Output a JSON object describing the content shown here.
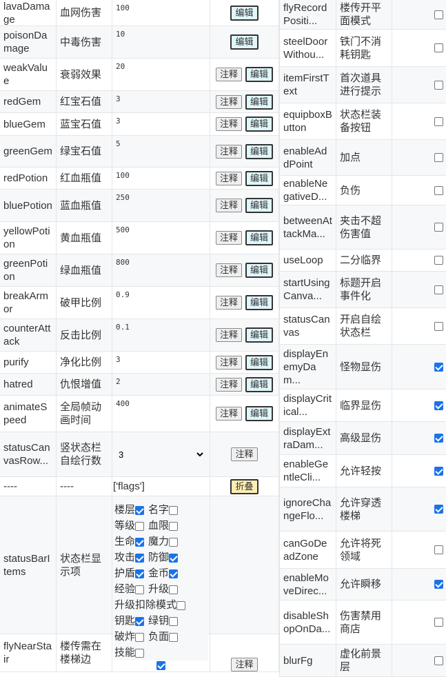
{
  "left_rows": [
    {
      "name": "lavaDamage",
      "label": "血网伤害",
      "value": "100",
      "comment": false,
      "edit": true
    },
    {
      "name": "poisonDamage",
      "label": "中毒伤害",
      "value": "10",
      "comment": false,
      "edit": true
    },
    {
      "name": "weakValue",
      "label": "衰弱效果",
      "value": "20",
      "comment": true,
      "edit": true
    },
    {
      "name": "redGem",
      "label": "红宝石值",
      "value": "3",
      "comment": true,
      "edit": true
    },
    {
      "name": "blueGem",
      "label": "蓝宝石值",
      "value": "3",
      "comment": true,
      "edit": true
    },
    {
      "name": "greenGem",
      "label": "绿宝石值",
      "value": "5",
      "comment": true,
      "edit": true
    },
    {
      "name": "redPotion",
      "label": "红血瓶值",
      "value": "100",
      "comment": true,
      "edit": true
    },
    {
      "name": "bluePotion",
      "label": "蓝血瓶值",
      "value": "250",
      "comment": true,
      "edit": true
    },
    {
      "name": "yellowPotion",
      "label": "黄血瓶值",
      "value": "500",
      "comment": true,
      "edit": true
    },
    {
      "name": "greenPotion",
      "label": "绿血瓶值",
      "value": "800",
      "comment": true,
      "edit": true
    },
    {
      "name": "breakArmor",
      "label": "破甲比例",
      "value": "0.9",
      "comment": true,
      "edit": true
    },
    {
      "name": "counterAttack",
      "label": "反击比例",
      "value": "0.1",
      "comment": true,
      "edit": true
    },
    {
      "name": "purify",
      "label": "净化比例",
      "value": "3",
      "comment": true,
      "edit": true
    },
    {
      "name": "hatred",
      "label": "仇恨增值",
      "value": "2",
      "comment": true,
      "edit": true
    },
    {
      "name": "animateSpeed",
      "label": "全局帧动画时间",
      "value": "400",
      "comment": true,
      "edit": true
    }
  ],
  "status_canvas_row": {
    "name": "statusCanvasRow...",
    "label": "竖状态栏自绘行数",
    "selected": "3"
  },
  "flags_row": {
    "name": "----",
    "label": "----",
    "value": "['flags']",
    "fold_label": "折叠"
  },
  "status_bar_items": {
    "name": "statusBarItems",
    "label": "状态栏显示项",
    "items": [
      {
        "label": "楼层",
        "checked": true
      },
      {
        "label": "名字",
        "checked": false
      },
      {
        "label": "等级",
        "checked": false
      },
      {
        "label": "血限",
        "checked": false
      },
      {
        "label": "生命",
        "checked": true
      },
      {
        "label": "魔力",
        "checked": false
      },
      {
        "label": "攻击",
        "checked": true
      },
      {
        "label": "防御",
        "checked": true
      },
      {
        "label": "护盾",
        "checked": true
      },
      {
        "label": "金币",
        "checked": true
      },
      {
        "label": "经验",
        "checked": false
      },
      {
        "label": "升级",
        "checked": false
      },
      {
        "label": "升级扣除模式",
        "checked": false
      },
      {
        "label": "钥匙",
        "checked": true
      },
      {
        "label": "绿钥",
        "checked": false
      },
      {
        "label": "破炸",
        "checked": false
      },
      {
        "label": "负面",
        "checked": false
      },
      {
        "label": "技能",
        "checked": false
      }
    ]
  },
  "fly_near_stair": {
    "name": "flyNearStair",
    "label": "楼传需在楼梯边",
    "checked": true
  },
  "buttons": {
    "comment": "注释",
    "edit": "编辑"
  },
  "right_rows": [
    {
      "name": "flyRecordPositi...",
      "label": "楼传开平面模式",
      "checked": false
    },
    {
      "name": "steelDoorWithou...",
      "label": "铁门不消耗钥匙",
      "checked": false
    },
    {
      "name": "itemFirstText",
      "label": "首次道具进行提示",
      "checked": false
    },
    {
      "name": "equipboxButton",
      "label": "状态栏装备按钮",
      "checked": false
    },
    {
      "name": "enableAddPoint",
      "label": "加点",
      "checked": false
    },
    {
      "name": "enableNegativeD...",
      "label": "负伤",
      "checked": false
    },
    {
      "name": "betweenAttackMa...",
      "label": "夹击不超伤害值",
      "checked": false
    },
    {
      "name": "useLoop",
      "label": "二分临界",
      "checked": false
    },
    {
      "name": "startUsingCanva...",
      "label": "标题开启事件化",
      "checked": false
    },
    {
      "name": "statusCanvas",
      "label": "开启自绘状态栏",
      "checked": false
    },
    {
      "name": "displayEnemyDam...",
      "label": "怪物显伤",
      "checked": true
    },
    {
      "name": "displayCritical...",
      "label": "临界显伤",
      "checked": true
    },
    {
      "name": "displayExtraDam...",
      "label": "高级显伤",
      "checked": true
    },
    {
      "name": "enableGentleCli...",
      "label": "允许轻按",
      "checked": true
    },
    {
      "name": "ignoreChangeFlo...",
      "label": "允许穿透楼梯",
      "checked": true
    },
    {
      "name": "canGoDeadZone",
      "label": "允许将死领域",
      "checked": false
    },
    {
      "name": "enableMoveDirec...",
      "label": "允许瞬移",
      "checked": true
    },
    {
      "name": "disableShopOnDa...",
      "label": "伤害禁用商店",
      "checked": false
    },
    {
      "name": "blurFg",
      "label": "虚化前景层",
      "checked": false
    }
  ]
}
